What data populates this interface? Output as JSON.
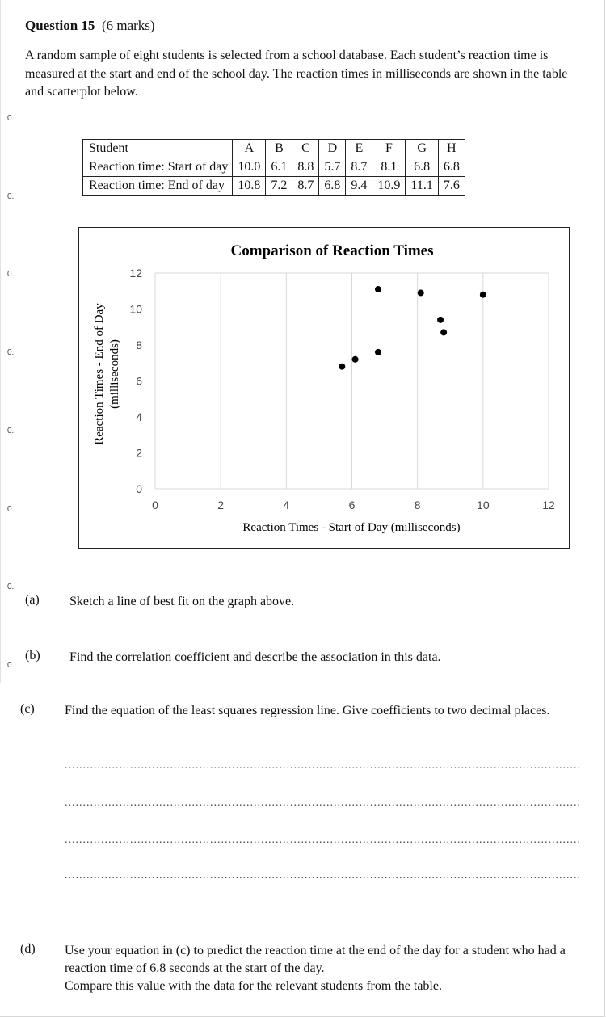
{
  "question": {
    "number_label": "Question 15",
    "marks": "(6 marks)",
    "intro": "A random sample of eight students is selected from a school database. Each student’s reaction time is measured at the start and end of the school day. The reaction times in milliseconds are shown in the table and scatterplot below."
  },
  "margin_marks": [
    "0.",
    "0.",
    "0.",
    "0.",
    "0.",
    "0.",
    "0.",
    "0."
  ],
  "table": {
    "header_label": "Student",
    "students": [
      "A",
      "B",
      "C",
      "D",
      "E",
      "F",
      "G",
      "H"
    ],
    "rows": [
      {
        "label": "Reaction time: Start of day",
        "values": [
          "10.0",
          "6.1",
          "8.8",
          "5.7",
          "8.7",
          "8.1",
          "6.8",
          "6.8"
        ]
      },
      {
        "label": "Reaction time: End of day",
        "values": [
          "10.8",
          "7.2",
          "8.7",
          "6.8",
          "9.4",
          "10.9",
          "11.1",
          "7.6"
        ]
      }
    ]
  },
  "chart_data": {
    "type": "scatter",
    "title": "Comparison of Reaction Times",
    "xlabel": "Reaction Times - Start of Day (milliseconds)",
    "ylabel_line1": "Reaction Times - End of Day",
    "ylabel_line2": "(milliseconds)",
    "xlim": [
      0,
      12
    ],
    "ylim": [
      0,
      12
    ],
    "xticks": [
      0,
      2,
      4,
      6,
      8,
      10,
      12
    ],
    "yticks": [
      0,
      2,
      4,
      6,
      8,
      10,
      12
    ],
    "grid": "vertical",
    "points": [
      {
        "x": 10.0,
        "y": 10.8
      },
      {
        "x": 6.1,
        "y": 7.2
      },
      {
        "x": 8.8,
        "y": 8.7
      },
      {
        "x": 5.7,
        "y": 6.8
      },
      {
        "x": 8.7,
        "y": 9.4
      },
      {
        "x": 8.1,
        "y": 10.9
      },
      {
        "x": 6.8,
        "y": 11.1
      },
      {
        "x": 6.8,
        "y": 7.6
      }
    ],
    "colors": {
      "point": "#000000",
      "grid": "#d9d9d9"
    }
  },
  "parts": [
    {
      "letter": "(a)",
      "text": "Sketch a line of best fit on the graph above."
    },
    {
      "letter": "(b)",
      "text": "Find the correlation coefficient and describe the association in this data."
    },
    {
      "letter": "(c)",
      "text": "Find the equation of the least squares regression line. Give coefficients to two decimal places."
    },
    {
      "letter": "(d)",
      "text": "Use your equation in (c) to predict the reaction time at the end of the day for a student who had a reaction time of 6.8 seconds at the start of the day.",
      "text2": "Compare this value with the data for the relevant students from the table."
    }
  ]
}
